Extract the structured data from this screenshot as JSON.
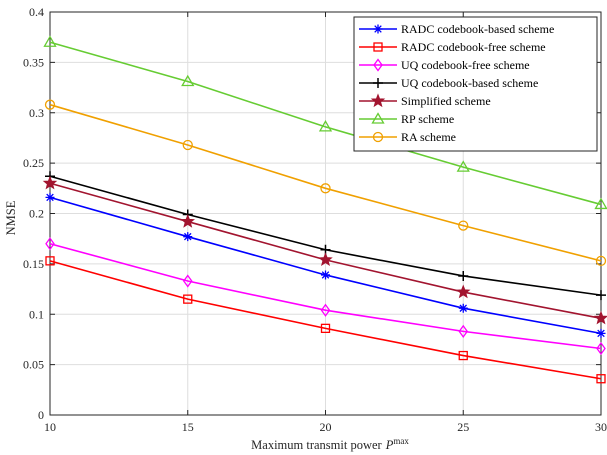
{
  "chart_data": {
    "type": "line",
    "x": [
      10,
      15,
      20,
      25,
      30
    ],
    "xlim": [
      10,
      30
    ],
    "ylim": [
      0,
      0.4
    ],
    "xticks": [
      "10",
      "15",
      "20",
      "25",
      "30"
    ],
    "yticks": [
      "0",
      "0.05",
      "0.1",
      "0.15",
      "0.2",
      "0.25",
      "0.3",
      "0.35",
      "0.4"
    ],
    "xlabel": "Maximum transmit power",
    "xlabel_symbol": "P",
    "xlabel_superscript": "max",
    "ylabel": "NMSE",
    "grid": true,
    "legend_position": "top-right",
    "series": [
      {
        "name": "RADC codebook-based scheme",
        "color": "#0000ff",
        "marker": "asterisk",
        "values": [
          0.216,
          0.177,
          0.139,
          0.106,
          0.081
        ]
      },
      {
        "name": "RADC codebook-free scheme",
        "color": "#ff0000",
        "marker": "square",
        "values": [
          0.153,
          0.115,
          0.086,
          0.059,
          0.036
        ]
      },
      {
        "name": "UQ codebook-free scheme",
        "color": "#ff00ff",
        "marker": "diamond",
        "values": [
          0.17,
          0.133,
          0.104,
          0.083,
          0.066
        ]
      },
      {
        "name": "UQ codebook-based scheme",
        "color": "#000000",
        "marker": "plus",
        "values": [
          0.237,
          0.199,
          0.164,
          0.138,
          0.119
        ]
      },
      {
        "name": "Simplified scheme",
        "color": "#a2142f",
        "marker": "star",
        "values": [
          0.23,
          0.192,
          0.154,
          0.122,
          0.096
        ]
      },
      {
        "name": "RP scheme",
        "color": "#66cc33",
        "marker": "triangle",
        "values": [
          0.37,
          0.331,
          0.286,
          0.246,
          0.209
        ]
      },
      {
        "name": "RA scheme",
        "color": "#f0a000",
        "marker": "circle",
        "values": [
          0.308,
          0.268,
          0.225,
          0.188,
          0.153
        ]
      }
    ]
  }
}
